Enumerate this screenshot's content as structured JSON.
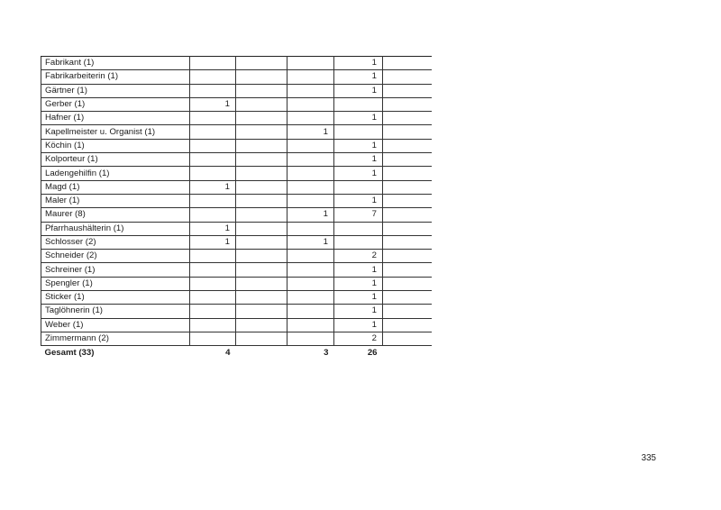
{
  "page": {
    "number": "335"
  },
  "table": {
    "rows": [
      {
        "label": "Fabrikant (1)",
        "values": [
          "",
          "",
          "",
          "1",
          ""
        ]
      },
      {
        "label": "Fabrikarbeiterin (1)",
        "values": [
          "",
          "",
          "",
          "1",
          ""
        ]
      },
      {
        "label": "Gärtner (1)",
        "values": [
          "",
          "",
          "",
          "1",
          ""
        ]
      },
      {
        "label": "Gerber (1)",
        "values": [
          "1",
          "",
          "",
          "",
          ""
        ]
      },
      {
        "label": "Hafner (1)",
        "values": [
          "",
          "",
          "",
          "1",
          ""
        ]
      },
      {
        "label": "Kapellmeister u. Organist (1)",
        "values": [
          "",
          "",
          "1",
          "",
          ""
        ]
      },
      {
        "label": "Köchin (1)",
        "values": [
          "",
          "",
          "",
          "1",
          ""
        ]
      },
      {
        "label": "Kolporteur (1)",
        "values": [
          "",
          "",
          "",
          "1",
          ""
        ]
      },
      {
        "label": "Ladengehilfin (1)",
        "values": [
          "",
          "",
          "",
          "1",
          ""
        ]
      },
      {
        "label": "Magd (1)",
        "values": [
          "1",
          "",
          "",
          "",
          ""
        ]
      },
      {
        "label": "Maler (1)",
        "values": [
          "",
          "",
          "",
          "1",
          ""
        ]
      },
      {
        "label": "Maurer (8)",
        "values": [
          "",
          "",
          "1",
          "7",
          ""
        ]
      },
      {
        "label": "Pfarrhaushälterin (1)",
        "values": [
          "1",
          "",
          "",
          "",
          ""
        ]
      },
      {
        "label": "Schlosser (2)",
        "values": [
          "1",
          "",
          "1",
          "",
          ""
        ]
      },
      {
        "label": "Schneider (2)",
        "values": [
          "",
          "",
          "",
          "2",
          ""
        ]
      },
      {
        "label": "Schreiner (1)",
        "values": [
          "",
          "",
          "",
          "1",
          ""
        ]
      },
      {
        "label": "Spengler (1)",
        "values": [
          "",
          "",
          "",
          "1",
          ""
        ]
      },
      {
        "label": "Sticker (1)",
        "values": [
          "",
          "",
          "",
          "1",
          ""
        ]
      },
      {
        "label": "Taglöhnerin (1)",
        "values": [
          "",
          "",
          "",
          "1",
          ""
        ]
      },
      {
        "label": "Weber (1)",
        "values": [
          "",
          "",
          "",
          "1",
          ""
        ]
      },
      {
        "label": "Zimmermann (2)",
        "values": [
          "",
          "",
          "",
          "2",
          ""
        ]
      }
    ],
    "footer": {
      "label": "Gesamt (33)",
      "values": [
        "4",
        "",
        "3",
        "26",
        ""
      ]
    }
  }
}
